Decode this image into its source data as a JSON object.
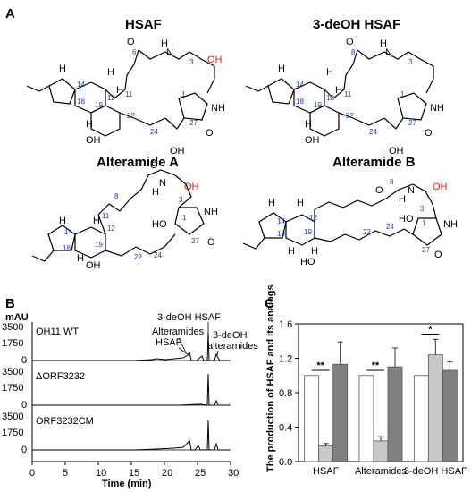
{
  "panel_labels": {
    "a": "A",
    "b": "B",
    "c": "C"
  },
  "structures": [
    {
      "name": "HSAF",
      "oh": "OH",
      "numbers": [
        "6",
        "3",
        "1",
        "14",
        "11",
        "12",
        "18",
        "19",
        "22",
        "24",
        "27"
      ],
      "extra": [
        "H",
        "N",
        "NH",
        "O",
        "O",
        "OH",
        "H",
        "H",
        "H",
        "H",
        "OH",
        "H"
      ]
    },
    {
      "name": "3-deOH HSAF",
      "numbers": [
        "8",
        "3",
        "1",
        "14",
        "11",
        "12",
        "18",
        "19",
        "22",
        "24",
        "27"
      ],
      "extra": [
        "H",
        "N",
        "NH",
        "O",
        "O",
        "OH",
        "H",
        "H",
        "H",
        "H",
        "OH",
        "H"
      ]
    },
    {
      "name": "Alteramide A",
      "oh": "OH",
      "numbers": [
        "8",
        "3",
        "11",
        "1",
        "12",
        "14",
        "19",
        "18",
        "22",
        "24",
        "27"
      ],
      "extra": [
        "H",
        "N",
        "HO",
        "NH",
        "O",
        "O",
        "OH",
        "H",
        "H",
        "H"
      ]
    },
    {
      "name": "Alteramide B",
      "oh": "OH",
      "numbers": [
        "8",
        "3",
        "14",
        "12",
        "18",
        "19",
        "22",
        "24",
        "1",
        "27"
      ],
      "extra": [
        "H",
        "N",
        "HO",
        "NH",
        "O",
        "O",
        "HO",
        "H",
        "H",
        "H",
        "H"
      ]
    }
  ],
  "panel_b": {
    "y_unit": "mAU",
    "x_label": "Time (min)",
    "x_ticks": [
      "0",
      "5",
      "10",
      "15",
      "20",
      "25",
      "30"
    ],
    "y_ticks": [
      "3500",
      "1750",
      "0"
    ],
    "traces": [
      {
        "name": "OH11 WT",
        "annotations": [
          "3-deOH HSAF",
          "Alteramides",
          "HSAF",
          "3-deOH alteramides"
        ]
      },
      {
        "name": "ΔORF3232"
      },
      {
        "name": "ORF3232CM"
      }
    ]
  },
  "chart_data": {
    "type": "bar",
    "ylabel": "The production of HSAF and its analogs",
    "categories": [
      "HSAF",
      "Alteramides",
      "3-deOH HSAF"
    ],
    "ylim": [
      0,
      1.6
    ],
    "yticks": [
      "0.0",
      "0.4",
      "0.8",
      "1.2",
      "1.6"
    ],
    "series": [
      {
        "values": [
          1.0,
          1.0,
          1.0
        ],
        "errors": [
          0.0,
          0.0,
          0.0
        ],
        "color": "#ffffff"
      },
      {
        "values": [
          0.18,
          0.24,
          1.24
        ],
        "errors": [
          0.03,
          0.05,
          0.18
        ],
        "color": "#c8c8c8"
      },
      {
        "values": [
          1.13,
          1.1,
          1.06
        ],
        "errors": [
          0.26,
          0.22,
          0.1
        ],
        "color": "#808080"
      }
    ],
    "significance": [
      {
        "category": "HSAF",
        "label": "**"
      },
      {
        "category": "Alteramides",
        "label": "**"
      },
      {
        "category": "3-deOH HSAF",
        "label": "*"
      }
    ]
  }
}
